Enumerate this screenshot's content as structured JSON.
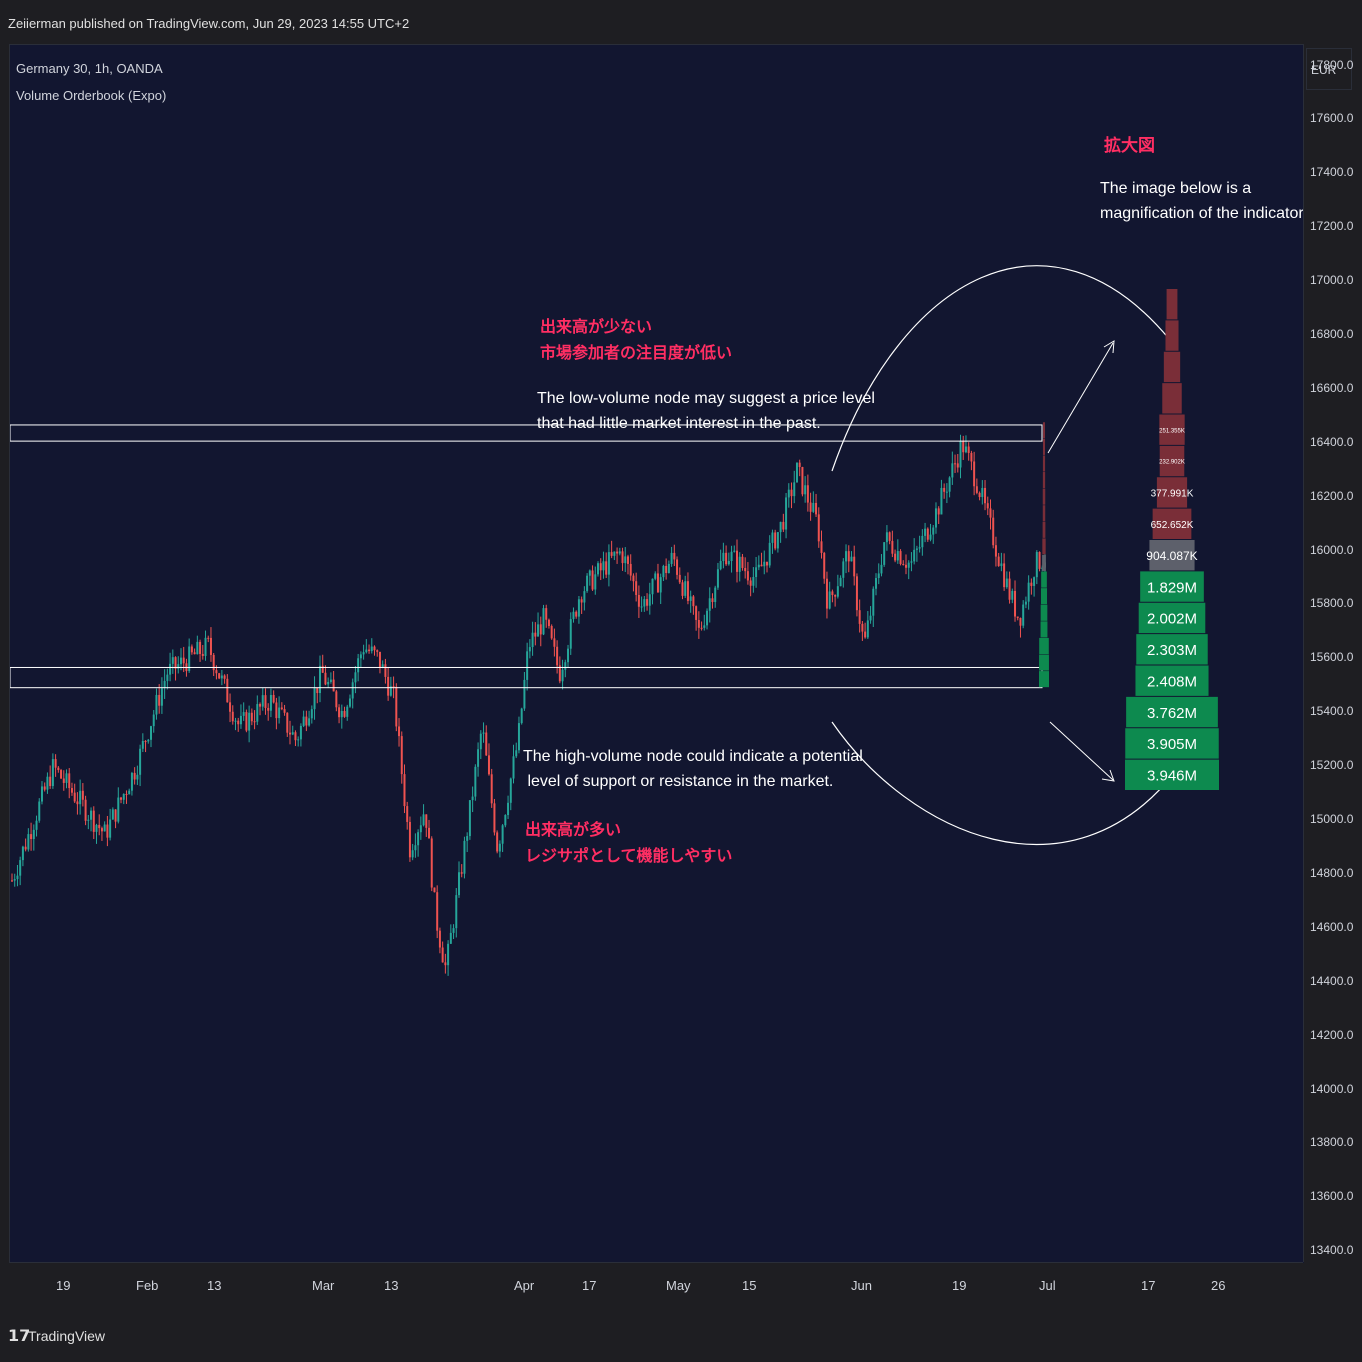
{
  "header": {
    "publisher_line": "Zeiierman published on TradingView.com, Jun 29, 2023 14:55 UTC+2"
  },
  "legend": {
    "symbol_line": "Germany 30, 1h, OANDA",
    "indicator_line": "Volume Orderbook (Expo)"
  },
  "currency_label": "EUR",
  "footer": {
    "logo_text": "TradingView"
  },
  "annotations": {
    "magnification_title": "拡大図",
    "magnification_text": "The image below is a\nmagnification of the indicator.",
    "low_volume_jp": "出来高が少ない\n市場参加者の注目度が低い",
    "low_volume_en": "The low-volume node may suggest a price level\nthat had little market interest in the past.",
    "high_volume_en": "The high-volume node could indicate a potential\n level of support or resistance in the market.",
    "high_volume_jp": "出来高が多い\nレジサポとして機能しやすい"
  },
  "colors": {
    "background": "#121630",
    "panel": "#1e1e22",
    "up_candle": "#26a69a",
    "down_candle": "#ef5350",
    "low_volume_bar": "#7a2e38",
    "neutral_bar": "#5d606b",
    "high_volume_bar": "#0d8a4f",
    "jp_text": "#ff2e63"
  },
  "chart_data": {
    "type": "candlestick",
    "y_axis": {
      "unit": "EUR",
      "ticks": [
        "17800.0",
        "17600.0",
        "17400.0",
        "17200.0",
        "17000.0",
        "16800.0",
        "16600.0",
        "16400.0",
        "16200.0",
        "16000.0",
        "15800.0",
        "15600.0",
        "15400.0",
        "15200.0",
        "15000.0",
        "14800.0",
        "14600.0",
        "14400.0",
        "14200.0",
        "14000.0",
        "13800.0",
        "13600.0",
        "13400.0"
      ],
      "ylim": [
        13360,
        17880
      ]
    },
    "x_axis": {
      "ticks": [
        "19",
        "Feb",
        "13",
        "Mar",
        "13",
        "Apr",
        "17",
        "May",
        "15",
        "Jun",
        "19",
        "Jul",
        "17",
        "26"
      ]
    },
    "price_path": [
      [
        0,
        14780
      ],
      [
        0.04,
        15200
      ],
      [
        0.09,
        14950
      ],
      [
        0.12,
        15200
      ],
      [
        0.15,
        15550
      ],
      [
        0.19,
        15650
      ],
      [
        0.22,
        15350
      ],
      [
        0.25,
        15450
      ],
      [
        0.275,
        15300
      ],
      [
        0.3,
        15550
      ],
      [
        0.32,
        15400
      ],
      [
        0.34,
        15650
      ],
      [
        0.355,
        15600
      ],
      [
        0.37,
        15450
      ],
      [
        0.385,
        14900
      ],
      [
        0.4,
        15050
      ],
      [
        0.41,
        14650
      ],
      [
        0.42,
        14450
      ],
      [
        0.44,
        14950
      ],
      [
        0.455,
        15350
      ],
      [
        0.47,
        14900
      ],
      [
        0.49,
        15300
      ],
      [
        0.5,
        15650
      ],
      [
        0.515,
        15750
      ],
      [
        0.53,
        15550
      ],
      [
        0.55,
        15850
      ],
      [
        0.575,
        15950
      ],
      [
        0.59,
        16000
      ],
      [
        0.61,
        15800
      ],
      [
        0.64,
        15980
      ],
      [
        0.665,
        15700
      ],
      [
        0.69,
        16000
      ],
      [
        0.72,
        15900
      ],
      [
        0.745,
        16100
      ],
      [
        0.76,
        16300
      ],
      [
        0.78,
        16100
      ],
      [
        0.79,
        15800
      ],
      [
        0.81,
        16000
      ],
      [
        0.825,
        15650
      ],
      [
        0.845,
        16050
      ],
      [
        0.87,
        15950
      ],
      [
        0.895,
        16150
      ],
      [
        0.92,
        16400
      ],
      [
        0.935,
        16250
      ],
      [
        0.95,
        16050
      ],
      [
        0.965,
        15850
      ],
      [
        0.975,
        15750
      ],
      [
        0.99,
        15950
      ],
      [
        1.0,
        15980
      ]
    ],
    "support_resistance_boxes": [
      {
        "name": "low-volume-zone",
        "y_top": 16470,
        "y_bottom": 16410
      },
      {
        "name": "high-volume-zone",
        "y_top": 15570,
        "y_bottom": 15495
      }
    ],
    "volume_orderbook": {
      "price_top": 16480,
      "price_bottom": 15495,
      "levels": [
        {
          "label": "",
          "volume": 0.02
        },
        {
          "label": "",
          "volume": 0.04
        },
        {
          "label": "",
          "volume": 0.08
        },
        {
          "label": "",
          "volume": 0.13
        },
        {
          "label": "251.355K",
          "volume": 0.251
        },
        {
          "label": "232.902K",
          "volume": 0.233
        },
        {
          "label": "377.991K",
          "volume": 0.378
        },
        {
          "label": "652.652K",
          "volume": 0.653
        },
        {
          "label": "904.087K",
          "volume": 0.904
        },
        {
          "label": "1.829M",
          "volume": 1.829
        },
        {
          "label": "2.002M",
          "volume": 2.002
        },
        {
          "label": "2.303M",
          "volume": 2.303
        },
        {
          "label": "2.408M",
          "volume": 2.408
        },
        {
          "label": "3.762M",
          "volume": 3.762
        },
        {
          "label": "3.905M",
          "volume": 3.905
        },
        {
          "label": "3.946M",
          "volume": 3.946
        }
      ]
    }
  }
}
